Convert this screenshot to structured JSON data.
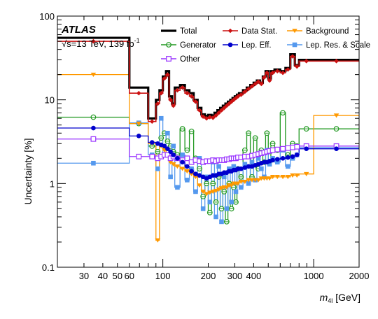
{
  "chart_data": {
    "type": "line",
    "step": true,
    "experiment": "ATLAS",
    "energy_label": "√s=13 TeV, 139 fb",
    "energy_sup": "-1",
    "xlabel_var": "m",
    "xlabel_sub": "4l",
    "xlabel_unit": " [GeV]",
    "ylabel": "Uncertainty [%]",
    "xscale": "log",
    "yscale": "log",
    "xlim": [
      20,
      2000
    ],
    "ylim": [
      0.1,
      100
    ],
    "xticks": [
      30,
      40,
      50,
      60,
      100,
      200,
      300,
      400,
      1000,
      2000
    ],
    "xtick_labels": [
      "30",
      "40",
      "50",
      "60",
      "100",
      "200",
      "300",
      "400",
      "1000",
      "2000"
    ],
    "yticks": [
      0.1,
      1,
      10,
      100
    ],
    "ytick_labels": [
      "0.1",
      "1",
      "10",
      "100"
    ],
    "legend_position": "top",
    "colors": {
      "Total": "#000000",
      "Data Stat.": "#cc1111",
      "Background": "#ff9900",
      "Generator": "#229922",
      "Lep. Eff.": "#0000cc",
      "Lep. Res. & Scale": "#5599ee",
      "Other": "#9933ff"
    },
    "x_edges": [
      20,
      60,
      80,
      90,
      95,
      100,
      105,
      110,
      115,
      120,
      130,
      140,
      150,
      160,
      170,
      180,
      190,
      200,
      210,
      220,
      230,
      240,
      250,
      260,
      270,
      280,
      290,
      300,
      310,
      320,
      340,
      360,
      380,
      400,
      420,
      440,
      460,
      480,
      500,
      520,
      550,
      600,
      650,
      700,
      750,
      800,
      1000,
      2000
    ],
    "series": [
      {
        "name": "Total",
        "marker": "none",
        "values": [
          55,
          14,
          6,
          10,
          13,
          19,
          22,
          11,
          9,
          14,
          15,
          13,
          12,
          10,
          8,
          6.7,
          6.4,
          6.6,
          6.5,
          7,
          7.5,
          8,
          8.5,
          9,
          9.5,
          10,
          10.5,
          11,
          11.5,
          12,
          13,
          14,
          15,
          16,
          17,
          16,
          19,
          22,
          18,
          22,
          23,
          22,
          24,
          35,
          26,
          30,
          30
        ]
      },
      {
        "name": "Data Stat.",
        "marker": "diamond",
        "values": [
          50,
          12,
          5.5,
          9,
          12,
          18,
          20,
          10,
          8.5,
          13,
          14,
          12,
          11,
          9.5,
          7.5,
          6.3,
          6,
          6.2,
          6.1,
          6.5,
          7,
          7.5,
          8,
          8.5,
          9,
          9.5,
          10,
          10.5,
          11,
          11.5,
          12.5,
          13.5,
          14.5,
          15.5,
          16.5,
          15.5,
          18.5,
          21,
          17,
          21,
          22,
          21,
          23,
          33,
          25,
          29,
          29
        ]
      },
      {
        "name": "Background",
        "marker": "tri_down",
        "values": [
          20,
          5.2,
          3,
          0.21,
          2.8,
          2.5,
          2.2,
          1.8,
          1.7,
          1.6,
          1.5,
          1.4,
          1.3,
          1.2,
          0.95,
          0.8,
          0.75,
          0.78,
          0.8,
          0.82,
          0.85,
          0.88,
          0.9,
          0.9,
          0.95,
          0.95,
          1,
          1,
          1,
          1.05,
          1.05,
          1.1,
          1.1,
          1.1,
          1.1,
          1.15,
          1.15,
          1.15,
          1.15,
          1.2,
          1.2,
          1.2,
          1.2,
          1.25,
          1.25,
          1.3,
          6.5
        ]
      },
      {
        "name": "Generator",
        "marker": "open_circle",
        "values": [
          6.2,
          5.2,
          2.8,
          2.4,
          3.5,
          4,
          3.2,
          2.8,
          2.4,
          2.2,
          4.5,
          2.5,
          4.2,
          2,
          1.5,
          0.7,
          1,
          0.45,
          1,
          0.6,
          1.2,
          0.5,
          0.8,
          0.35,
          1,
          0.5,
          0.9,
          0.6,
          1.5,
          1.2,
          2.5,
          4,
          1.2,
          3.5,
          1.5,
          2.5,
          1.8,
          4,
          1.8,
          3,
          2.5,
          7,
          2.2,
          3,
          2.8,
          4.5,
          4.5
        ]
      },
      {
        "name": "Lep. Eff.",
        "marker": "filled_circle",
        "values": [
          4.6,
          3.7,
          3.1,
          3.0,
          2.9,
          2.8,
          2.6,
          2.4,
          2.2,
          2.0,
          1.8,
          1.6,
          1.4,
          1.3,
          1.25,
          1.2,
          1.15,
          1.2,
          1.25,
          1.25,
          1.3,
          1.3,
          1.35,
          1.35,
          1.4,
          1.4,
          1.45,
          1.45,
          1.5,
          1.5,
          1.55,
          1.6,
          1.6,
          1.65,
          1.7,
          1.75,
          1.8,
          1.8,
          1.85,
          1.9,
          1.95,
          2,
          2.05,
          2.1,
          2.2,
          2.6,
          2.6
        ]
      },
      {
        "name": "Lep. Res. & Scale",
        "marker": "filled_square",
        "values": [
          1.75,
          5.3,
          2.2,
          1.5,
          6,
          2.2,
          4,
          1.2,
          2.8,
          0.9,
          2.2,
          1.1,
          1.5,
          0.8,
          2,
          0.5,
          1.2,
          0.6,
          1.8,
          0.4,
          1.6,
          0.35,
          1.2,
          0.5,
          1.5,
          0.6,
          1.6,
          0.8,
          1.5,
          0.9,
          1.7,
          1,
          1.8,
          1.1,
          2,
          1.5,
          1.2,
          2.5,
          1.7,
          2,
          1.8,
          2.5,
          1.6,
          2,
          2.2,
          2.7,
          2.7
        ]
      },
      {
        "name": "Other",
        "marker": "open_square",
        "values": [
          3.4,
          2.1,
          2.1,
          2.0,
          2.1,
          2.2,
          2.2,
          2.0,
          2.1,
          2.0,
          1.9,
          2.0,
          1.8,
          1.9,
          1.85,
          1.8,
          1.85,
          1.85,
          1.9,
          1.85,
          1.9,
          1.9,
          1.9,
          1.95,
          1.95,
          2,
          2,
          2,
          2.05,
          2.05,
          2.1,
          2.1,
          2.15,
          2.2,
          2.25,
          2.3,
          2.35,
          2.4,
          2.45,
          2.5,
          2.55,
          2.6,
          2.65,
          2.7,
          2.75,
          2.8,
          2.8
        ]
      }
    ]
  }
}
